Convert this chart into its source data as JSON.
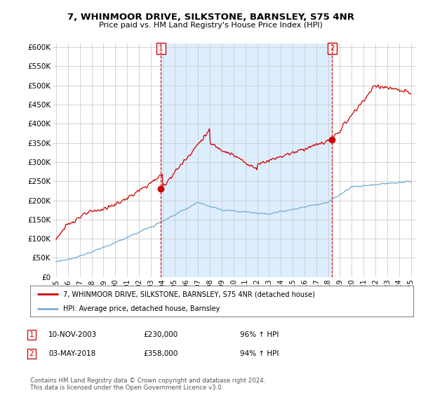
{
  "title": "7, WHINMOOR DRIVE, SILKSTONE, BARNSLEY, S75 4NR",
  "subtitle": "Price paid vs. HM Land Registry's House Price Index (HPI)",
  "ylabel_ticks": [
    "£0",
    "£50K",
    "£100K",
    "£150K",
    "£200K",
    "£250K",
    "£300K",
    "£350K",
    "£400K",
    "£450K",
    "£500K",
    "£550K",
    "£600K"
  ],
  "ytick_values": [
    0,
    50000,
    100000,
    150000,
    200000,
    250000,
    300000,
    350000,
    400000,
    450000,
    500000,
    550000,
    600000
  ],
  "ylim": [
    0,
    610000
  ],
  "xlim_start": 1994.7,
  "xlim_end": 2025.5,
  "xtick_years": [
    1995,
    1996,
    1997,
    1998,
    1999,
    2000,
    2001,
    2002,
    2003,
    2004,
    2005,
    2006,
    2007,
    2008,
    2009,
    2010,
    2011,
    2012,
    2013,
    2014,
    2015,
    2016,
    2017,
    2018,
    2019,
    2020,
    2021,
    2022,
    2023,
    2024,
    2025
  ],
  "sale1_x": 2003.86,
  "sale1_y": 230000,
  "sale1_label": "1",
  "sale2_x": 2018.34,
  "sale2_y": 358000,
  "sale2_label": "2",
  "vline_color": "#cc0000",
  "hpi_color": "#7ab0d4",
  "price_color": "#cc0000",
  "shade_color": "#ddeeff",
  "legend_line1": "7, WHINMOOR DRIVE, SILKSTONE, BARNSLEY, S75 4NR (detached house)",
  "legend_line2": "HPI: Average price, detached house, Barnsley",
  "annotation1_date": "10-NOV-2003",
  "annotation1_price": "£230,000",
  "annotation1_hpi": "96% ↑ HPI",
  "annotation2_date": "03-MAY-2018",
  "annotation2_price": "£358,000",
  "annotation2_hpi": "94% ↑ HPI",
  "footnote": "Contains HM Land Registry data © Crown copyright and database right 2024.\nThis data is licensed under the Open Government Licence v3.0.",
  "bg_color": "#ffffff",
  "grid_color": "#cccccc"
}
